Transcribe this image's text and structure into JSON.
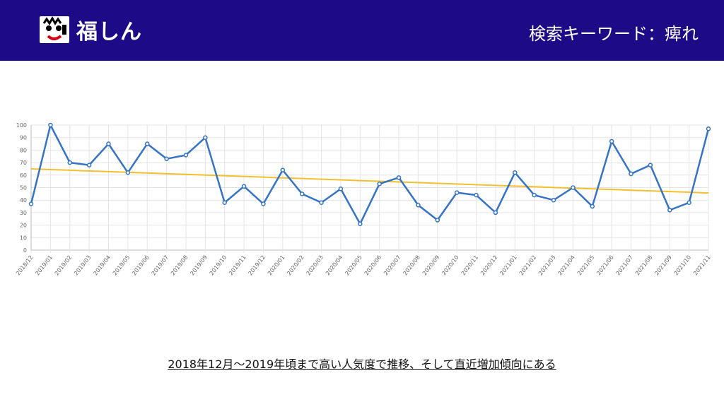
{
  "header": {
    "logo_text": "福しん",
    "title": "検索キーワード：痺れ"
  },
  "colors": {
    "header_bg": "#1d0a86",
    "series": "#3573c4",
    "trend": "#f2c02e",
    "logo_red": "#d4000f"
  },
  "chart_data": {
    "type": "line",
    "x": [
      "2018/12",
      "2019/01",
      "2019/02",
      "2019/03",
      "2019/04",
      "2019/05",
      "2019/06",
      "2019/07",
      "2019/08",
      "2019/09",
      "2019/10",
      "2019/11",
      "2019/12",
      "2020/01",
      "2020/02",
      "2020/03",
      "2020/04",
      "2020/05",
      "2020/06",
      "2020/07",
      "2020/08",
      "2020/09",
      "2020/10",
      "2020/11",
      "2020/12",
      "2021/01",
      "2021/02",
      "2021/03",
      "2021/04",
      "2021/05",
      "2021/06",
      "2021/07",
      "2021/08",
      "2021/09",
      "2021/10",
      "2021/11"
    ],
    "series": [
      {
        "values": [
          37,
          100,
          70,
          68,
          85,
          62,
          85,
          73,
          76,
          90,
          38,
          51,
          37,
          64,
          45,
          38,
          49,
          21,
          53,
          58,
          36,
          24,
          46,
          44,
          30,
          62,
          44,
          40,
          50,
          35,
          87,
          61,
          68,
          32,
          38,
          97
        ]
      },
      {
        "values": [
          65,
          64.4,
          63.9,
          63.3,
          62.8,
          62.2,
          61.7,
          61.1,
          60.6,
          60,
          59.5,
          58.9,
          58.4,
          57.8,
          57.3,
          56.7,
          56.2,
          55.6,
          55.1,
          54.5,
          54,
          53.4,
          52.9,
          52.3,
          51.8,
          51.2,
          50.7,
          50.1,
          49.6,
          49,
          48.5,
          47.9,
          47.4,
          46.8,
          46.3,
          45.7
        ]
      }
    ],
    "ylim": [
      0,
      100
    ],
    "y_ticks": [
      0,
      10,
      20,
      30,
      40,
      50,
      60,
      70,
      80,
      90,
      100
    ],
    "grid": true,
    "legend": "none"
  },
  "caption": "2018年12月〜2019年頃まで高い人気度で推移、そして直近増加傾向にある"
}
